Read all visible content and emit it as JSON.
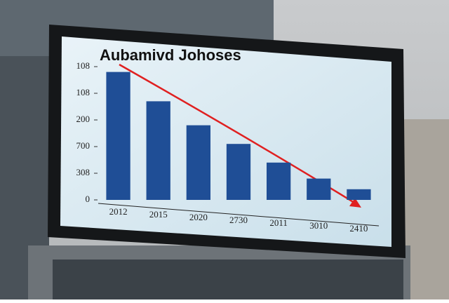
{
  "chart_data": {
    "type": "bar",
    "title": "Aubamivd Johoses",
    "categories": [
      "2012",
      "2015",
      "2020",
      "2730",
      "2011",
      "3010",
      "2410"
    ],
    "values": [
      4.8,
      3.7,
      2.8,
      2.1,
      1.4,
      0.8,
      0.4
    ],
    "color": "#1f4e96",
    "ylim": [
      0,
      5
    ],
    "yticks": [
      {
        "value": 0,
        "label": "0"
      },
      {
        "value": 1,
        "label": "308"
      },
      {
        "value": 2,
        "label": "700"
      },
      {
        "value": 3,
        "label": "200"
      },
      {
        "value": 4,
        "label": "108"
      },
      {
        "value": 5,
        "label": "108"
      }
    ],
    "grid": false
  }
}
